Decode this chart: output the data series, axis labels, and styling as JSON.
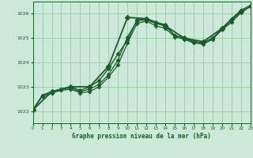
{
  "bg_color": "#cce8d8",
  "grid_color": "#99ccaa",
  "line_color": "#1a5c2a",
  "title": "Graphe pression niveau de la mer (hPa)",
  "xlim": [
    0,
    23
  ],
  "ylim": [
    1021.5,
    1026.5
  ],
  "xticks": [
    0,
    1,
    2,
    3,
    4,
    5,
    6,
    7,
    8,
    9,
    10,
    11,
    12,
    13,
    14,
    15,
    16,
    17,
    18,
    19,
    20,
    21,
    22,
    23
  ],
  "yticks": [
    1022,
    1023,
    1024,
    1025,
    1026
  ],
  "series": [
    {
      "x": [
        0,
        1,
        2,
        3,
        4,
        5,
        6,
        7,
        8,
        9,
        10,
        11,
        12,
        13,
        14,
        15,
        16,
        17,
        18,
        19,
        20,
        21,
        22,
        23
      ],
      "y": [
        1022.05,
        1022.65,
        1022.8,
        1022.9,
        1023.0,
        1022.85,
        1023.0,
        1023.25,
        1023.75,
        1024.35,
        1024.9,
        1025.75,
        1025.8,
        1025.65,
        1025.55,
        1025.1,
        1025.0,
        1024.85,
        1024.8,
        1025.0,
        1025.35,
        1025.65,
        1026.05,
        1026.3
      ],
      "marker": "D",
      "markersize": 2.5,
      "linewidth": 1.0
    },
    {
      "x": [
        0,
        1,
        2,
        3,
        4,
        5,
        6,
        7,
        8,
        9,
        10,
        11,
        12,
        13,
        14,
        15,
        16,
        17,
        18,
        19,
        20,
        21,
        22,
        23
      ],
      "y": [
        1022.05,
        1022.65,
        1022.8,
        1022.9,
        1022.95,
        1022.8,
        1022.9,
        1023.1,
        1023.5,
        1024.1,
        1025.05,
        1025.7,
        1025.75,
        1025.6,
        1025.5,
        1025.1,
        1025.0,
        1024.85,
        1024.8,
        1025.0,
        1025.4,
        1025.8,
        1026.15,
        1026.35
      ],
      "marker": "D",
      "markersize": 2.5,
      "linewidth": 0.9
    },
    {
      "x": [
        0,
        1,
        2,
        3,
        4,
        5,
        6,
        7,
        8,
        9,
        10,
        11,
        12,
        13,
        14,
        15,
        16,
        17,
        18,
        19,
        20,
        21,
        22,
        23
      ],
      "y": [
        1022.05,
        1022.6,
        1022.75,
        1022.85,
        1022.9,
        1022.75,
        1022.8,
        1023.0,
        1023.4,
        1023.9,
        1024.8,
        1025.6,
        1025.7,
        1025.5,
        1025.4,
        1025.05,
        1024.95,
        1024.8,
        1024.75,
        1024.95,
        1025.35,
        1025.75,
        1026.1,
        1026.3
      ],
      "marker": "D",
      "markersize": 2.5,
      "linewidth": 0.9
    },
    {
      "x": [
        0,
        2,
        4,
        6,
        8,
        10,
        12,
        14,
        16,
        18,
        20,
        22
      ],
      "y": [
        1022.05,
        1022.8,
        1023.0,
        1023.0,
        1023.85,
        1025.85,
        1025.8,
        1025.5,
        1025.0,
        1024.85,
        1025.4,
        1026.1
      ],
      "marker": "D",
      "markersize": 3.5,
      "linewidth": 1.3
    }
  ]
}
